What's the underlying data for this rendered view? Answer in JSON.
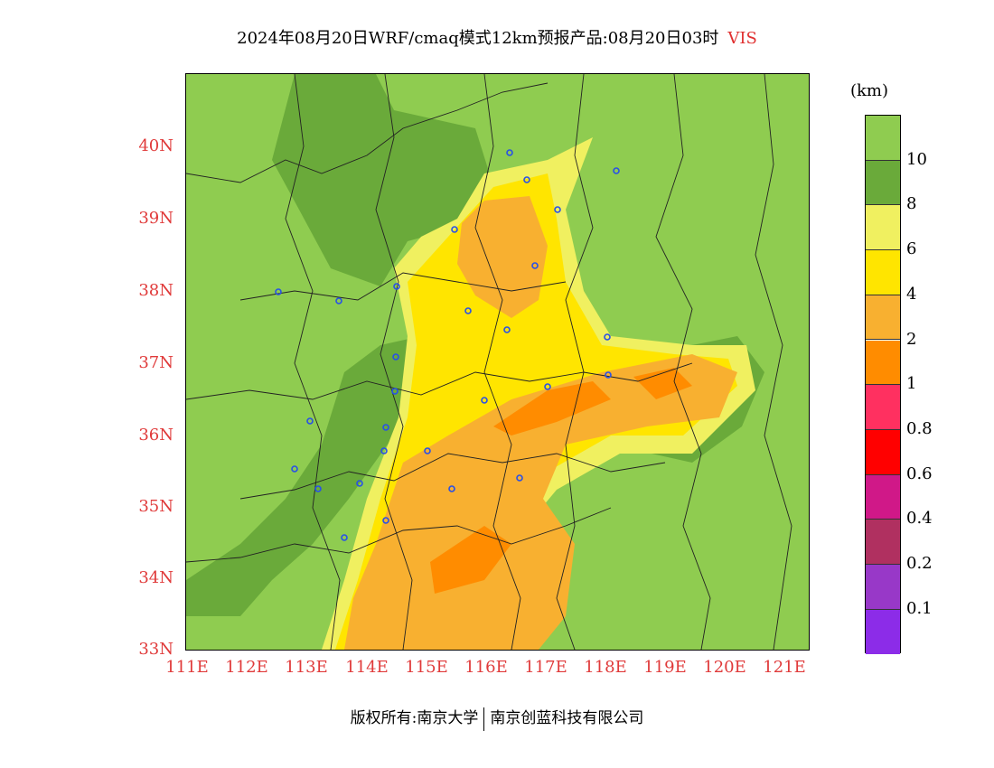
{
  "title": {
    "text": "2024年08月20日WRF/cmaq模式12km预报产品:08月20日03时",
    "variable": "VIS"
  },
  "map": {
    "lat_ticks": [
      "40N",
      "39N",
      "38N",
      "37N",
      "36N",
      "35N",
      "34N",
      "33N"
    ],
    "lon_ticks": [
      "111E",
      "112E",
      "113E",
      "114E",
      "115E",
      "116E",
      "117E",
      "118E",
      "119E",
      "120E",
      "121E"
    ],
    "lat_range": [
      33,
      41
    ],
    "lon_range": [
      111,
      121.4
    ],
    "city_marker_color": "#2850e8"
  },
  "legend": {
    "unit": "(km)",
    "labels": [
      "10",
      "8",
      "6",
      "4",
      "2",
      "1",
      "0.8",
      "0.6",
      "0.4",
      "0.2",
      "0.1"
    ],
    "colors": [
      "#8fcc50",
      "#6aaa3a",
      "#f0f060",
      "#ffe500",
      "#f8b030",
      "#ff8c00",
      "#ff3060",
      "#ff0000",
      "#d01888",
      "#b03060",
      "#9838c8",
      "#8c2ce8"
    ]
  },
  "footer": {
    "left": "版权所有:南京大学",
    "right": "南京创蓝科技有限公司"
  }
}
